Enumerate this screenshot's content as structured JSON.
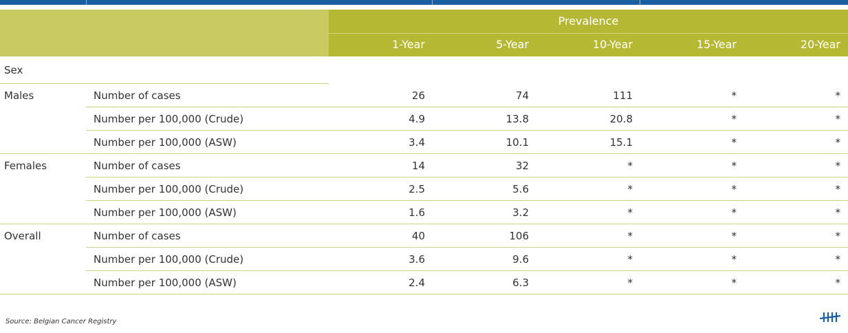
{
  "header": {
    "prevalence": "Prevalence",
    "columns": [
      "1-Year",
      "5-Year",
      "10-Year",
      "15-Year",
      "20-Year"
    ]
  },
  "table": {
    "section": "Sex",
    "groups": [
      {
        "label": "Males",
        "rows": [
          {
            "label": "Number of cases",
            "values": [
              26,
              74,
              111,
              "*",
              "*"
            ]
          },
          {
            "label": "Number per 100,000 (Crude)",
            "values": [
              4.9,
              13.8,
              20.8,
              "*",
              "*"
            ]
          },
          {
            "label": "Number per 100,000 (ASW)",
            "values": [
              3.4,
              10.1,
              15.1,
              "*",
              "*"
            ]
          }
        ]
      },
      {
        "label": "Females",
        "rows": [
          {
            "label": "Number of cases",
            "values": [
              14,
              32,
              "*",
              "*",
              "*"
            ]
          },
          {
            "label": "Number per 100,000 (Crude)",
            "values": [
              2.5,
              5.6,
              "*",
              "*",
              "*"
            ]
          },
          {
            "label": "Number per 100,000 (ASW)",
            "values": [
              1.6,
              3.2,
              "*",
              "*",
              "*"
            ]
          }
        ]
      },
      {
        "label": "Overall",
        "rows": [
          {
            "label": "Number of cases",
            "values": [
              40,
              106,
              "*",
              "*",
              "*"
            ]
          },
          {
            "label": "Number per 100,000 (Crude)",
            "values": [
              3.6,
              9.6,
              "*",
              "*",
              "*"
            ]
          },
          {
            "label": "Number per 100,000 (ASW)",
            "values": [
              2.4,
              6.3,
              "*",
              "*",
              "*"
            ]
          }
        ]
      }
    ]
  },
  "source": "Source: Belgian Cancer Registry"
}
